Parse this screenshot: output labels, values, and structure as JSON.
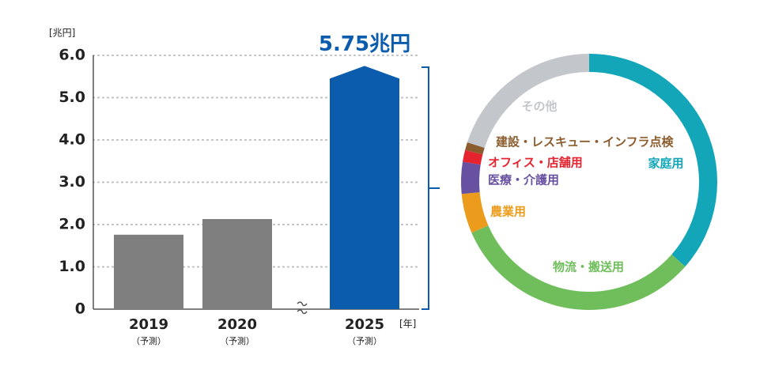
{
  "chart_data": [
    {
      "type": "bar",
      "y_unit_label": "[兆円]",
      "x_unit_label": "[年]",
      "categories": [
        "2019",
        "2020",
        "2025"
      ],
      "sublabels": [
        "（予測）",
        "（予測）",
        "（予測）"
      ],
      "values": [
        1.76,
        2.13,
        5.75
      ],
      "value_labels": [
        null,
        null,
        "5.75兆円"
      ],
      "colors": [
        "#7f7f7f",
        "#7f7f7f",
        "#0b5cad"
      ],
      "ylim": [
        0,
        6
      ],
      "yticks": [
        0,
        {
          "value": 1,
          "label": "1.0"
        },
        {
          "value": 2,
          "label": "2.0"
        },
        {
          "value": 3,
          "label": "3.0"
        },
        {
          "value": 4,
          "label": "4.0"
        },
        {
          "value": 5,
          "label": "5.0"
        },
        {
          "value": 6,
          "label": "6.0"
        }
      ],
      "grid": true
    },
    {
      "type": "donut",
      "categories": [
        "家庭用",
        "物流・搬送用",
        "農業用",
        "医療・介護用",
        "オフィス・店舗用",
        "建設・レスキュー・インフラ点検",
        "その他"
      ],
      "values": [
        36.5,
        32,
        5,
        4,
        1.5,
        1,
        20
      ],
      "colors": [
        "#12a6b8",
        "#6fbd5b",
        "#ec9c1c",
        "#6951a1",
        "#e5242f",
        "#8b5c2d",
        "#c3c6cb"
      ]
    }
  ]
}
